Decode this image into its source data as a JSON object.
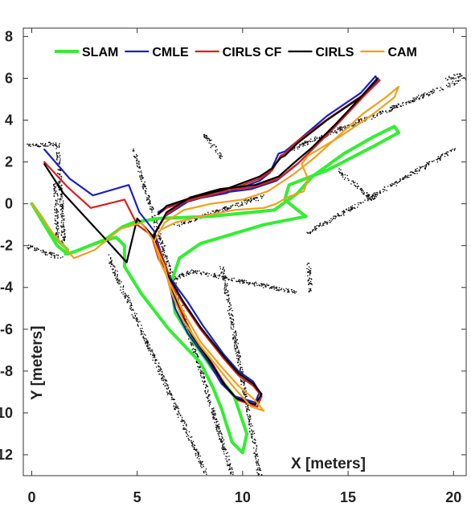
{
  "chart_data": {
    "type": "line",
    "title": "",
    "xlabel": "X [meters]",
    "ylabel": "Y [meters]",
    "xlim": [
      -0.4,
      20.6
    ],
    "ylim": [
      -13.0,
      8.4
    ],
    "xticks": [
      0,
      5,
      10,
      15,
      20
    ],
    "yticks": [
      8,
      6,
      4,
      2,
      0,
      -2,
      -4,
      -6,
      -8,
      -10,
      -12
    ],
    "xtick_labels": [
      "0",
      "5",
      "10",
      "15",
      "20"
    ],
    "ytick_labels": [
      "8",
      "6",
      "4",
      "2",
      "0",
      "-2",
      "-4",
      "-6",
      "-8",
      "-10",
      "-12"
    ],
    "grid": false,
    "legend_position": "top",
    "background_map": "occupancy grid (black points)",
    "series": [
      {
        "name": "SLAM",
        "color": "#33ee33",
        "x": [
          0.0,
          0.6,
          1.2,
          1.7,
          2.0,
          3.5,
          4.3,
          4.8,
          6.0,
          8.5,
          11.5,
          12.6,
          13.3,
          14.8,
          16.2,
          17.2,
          17.4,
          16.3,
          14.0,
          12.2,
          12.0,
          12.6,
          13.0,
          11.0,
          8.0,
          7.0,
          6.6,
          6.8,
          7.6,
          8.5,
          9.6,
          10.2,
          10.0,
          9.5,
          9.0,
          8.6,
          8.0,
          6.5,
          5.2,
          4.4,
          4.4,
          4.0,
          3.0,
          2.0,
          1.6,
          1.7,
          1.0,
          0.5,
          0.0
        ],
        "y": [
          0.0,
          -1.0,
          -2.0,
          -2.4,
          -2.3,
          -1.7,
          -1.1,
          -0.9,
          -0.7,
          -0.6,
          -0.3,
          0.5,
          1.3,
          2.4,
          3.2,
          3.7,
          3.4,
          2.8,
          1.6,
          0.9,
          0.2,
          -0.3,
          -0.6,
          -1.0,
          -1.9,
          -2.6,
          -3.8,
          -5.2,
          -6.5,
          -7.8,
          -9.2,
          -11.0,
          -11.9,
          -11.4,
          -9.8,
          -8.8,
          -7.6,
          -6.0,
          -4.3,
          -3.0,
          -2.0,
          -1.6,
          -1.9,
          -2.3,
          -2.4,
          -2.2,
          -1.5,
          -0.7,
          0.0
        ]
      },
      {
        "name": "CMLE",
        "color": "#1a23b8",
        "x": [
          0.6,
          1.8,
          2.9,
          4.6,
          5.1,
          5.8,
          6.2,
          6.5,
          6.8,
          7.4,
          8.4,
          9.0,
          9.6,
          10.6,
          10.8,
          10.5,
          9.8,
          9.1,
          8.1,
          7.4,
          6.6,
          6.1,
          5.7,
          6.3,
          7.4,
          8.8,
          10.4,
          11.6,
          12.6,
          13.2,
          14.3,
          15.6,
          16.4,
          16.3,
          15.6,
          14.0,
          12.6,
          12.0,
          11.7,
          11.3,
          10.8,
          9.2,
          7.6,
          6.5,
          6.0
        ],
        "y": [
          2.6,
          1.2,
          0.4,
          0.9,
          -0.4,
          -1.3,
          -2.6,
          -3.8,
          -5.0,
          -6.2,
          -7.6,
          -8.6,
          -9.2,
          -9.5,
          -9.0,
          -8.5,
          -8.0,
          -7.2,
          -5.8,
          -4.7,
          -3.6,
          -2.6,
          -1.6,
          -0.6,
          0.1,
          0.5,
          0.7,
          1.1,
          1.9,
          2.5,
          3.6,
          5.0,
          5.9,
          6.1,
          5.3,
          4.2,
          3.0,
          2.5,
          2.4,
          1.5,
          1.1,
          0.5,
          0.2,
          -0.1,
          -0.4
        ]
      },
      {
        "name": "CIRLS CF",
        "color": "#d82020",
        "x": [
          0.6,
          1.7,
          2.8,
          4.4,
          5.0,
          5.8,
          6.3,
          6.7,
          7.1,
          7.7,
          8.6,
          9.2,
          9.8,
          10.7,
          10.9,
          10.5,
          9.8,
          9.1,
          8.0,
          7.2,
          6.5,
          6.0,
          5.7,
          6.4,
          7.4,
          8.8,
          10.5,
          11.7,
          12.7,
          13.3,
          14.4,
          15.7,
          16.5,
          16.4,
          15.7,
          14.1,
          12.6,
          12.0,
          11.8,
          11.4,
          10.8,
          9.2,
          7.6,
          6.4,
          6.0
        ],
        "y": [
          2.0,
          0.8,
          -0.2,
          0.2,
          -1.0,
          -1.6,
          -2.8,
          -4.0,
          -5.2,
          -6.4,
          -7.7,
          -8.7,
          -9.4,
          -9.7,
          -9.2,
          -8.7,
          -8.2,
          -7.4,
          -6.0,
          -4.8,
          -3.6,
          -2.6,
          -1.6,
          -0.5,
          0.2,
          0.6,
          0.8,
          1.2,
          2.0,
          2.6,
          3.7,
          5.1,
          5.9,
          6.0,
          5.2,
          4.1,
          3.0,
          2.4,
          2.3,
          1.6,
          1.2,
          0.6,
          0.2,
          -0.2,
          -0.5
        ]
      },
      {
        "name": "CIRLS",
        "color": "#000000",
        "x": [
          0.6,
          1.5,
          2.5,
          3.6,
          4.5,
          5.0,
          5.7,
          6.2,
          6.6,
          7.0,
          7.6,
          8.5,
          9.1,
          9.7,
          10.6,
          10.9,
          10.5,
          9.8,
          9.1,
          8.0,
          7.2,
          6.5,
          6.0,
          5.8,
          6.4,
          7.5,
          8.9,
          10.6,
          11.7,
          12.6,
          13.3,
          14.4,
          15.7,
          16.4,
          16.3,
          15.6,
          14.0,
          12.6,
          12.0,
          11.8,
          11.4,
          10.8,
          9.2,
          7.6,
          6.4,
          6.0
        ],
        "y": [
          1.9,
          0.5,
          -0.6,
          -1.8,
          -2.8,
          -0.7,
          -1.5,
          -2.7,
          -3.9,
          -5.1,
          -6.3,
          -7.6,
          -8.6,
          -9.3,
          -9.6,
          -9.1,
          -8.6,
          -8.1,
          -7.3,
          -5.9,
          -4.7,
          -3.5,
          -2.5,
          -1.5,
          -0.4,
          0.3,
          0.7,
          0.9,
          1.3,
          2.1,
          2.7,
          3.8,
          5.2,
          6.0,
          5.9,
          5.1,
          4.0,
          2.9,
          2.3,
          2.2,
          1.7,
          1.3,
          0.7,
          0.3,
          -0.1,
          -0.5
        ]
      },
      {
        "name": "CAM",
        "color": "#f0a020",
        "x": [
          0.0,
          1.0,
          2.0,
          3.0,
          4.2,
          5.2,
          5.8,
          6.3,
          6.6,
          7.2,
          8.0,
          8.8,
          9.6,
          10.4,
          11.0,
          10.6,
          9.8,
          9.0,
          8.0,
          7.2,
          6.6,
          6.1,
          5.8,
          6.3,
          7.2,
          8.5,
          10.0,
          11.2,
          12.4,
          13.4,
          14.5,
          15.7,
          16.8,
          17.4,
          17.2,
          16.2,
          14.6,
          13.1,
          12.8,
          13.1,
          12.9,
          12.1,
          11.6,
          11.0,
          9.6,
          8.0,
          6.8,
          6.2
        ],
        "y": [
          0.0,
          -1.4,
          -2.6,
          -2.2,
          -1.2,
          -0.9,
          -1.8,
          -3.0,
          -4.2,
          -5.6,
          -6.8,
          -7.8,
          -8.8,
          -9.7,
          -9.9,
          -9.4,
          -8.7,
          -7.8,
          -6.6,
          -5.2,
          -3.9,
          -2.8,
          -1.8,
          -0.9,
          -0.3,
          0.0,
          0.2,
          0.6,
          1.4,
          2.2,
          3.2,
          4.3,
          5.1,
          5.6,
          5.1,
          4.3,
          3.2,
          2.3,
          1.9,
          1.2,
          0.6,
          0.3,
          0.0,
          -0.2,
          -0.3,
          -0.6,
          -0.9,
          -1.2
        ]
      }
    ]
  }
}
